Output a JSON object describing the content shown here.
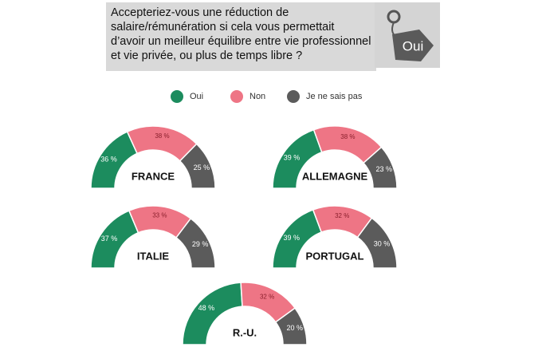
{
  "question": "Accepteriez-vous une réduction de salaire/rémunération si cela vous permettait d’avoir un meilleur équilibre entre vie professionnel et vie privée, ou plus de temps libre ?",
  "tag_label": "Oui",
  "chart_data": [
    {
      "type": "donut",
      "title": "FRANCE",
      "categories": [
        "Oui",
        "Non",
        "Je ne sais pas"
      ],
      "colors": [
        "#1c8c5e",
        "#ee7585",
        "#5b5b5b"
      ],
      "values": [
        36,
        38,
        25
      ],
      "value_labels": [
        "36 %",
        "38 %",
        "25 %"
      ]
    },
    {
      "type": "donut",
      "title": "ALLEMAGNE",
      "categories": [
        "Oui",
        "Non",
        "Je ne sais pas"
      ],
      "colors": [
        "#1c8c5e",
        "#ee7585",
        "#5b5b5b"
      ],
      "values": [
        39,
        38,
        23
      ],
      "value_labels": [
        "39 %",
        "38 %",
        "23 %"
      ]
    },
    {
      "type": "donut",
      "title": "ITALIE",
      "categories": [
        "Oui",
        "Non",
        "Je ne sais pas"
      ],
      "colors": [
        "#1c8c5e",
        "#ee7585",
        "#5b5b5b"
      ],
      "values": [
        37,
        33,
        29
      ],
      "value_labels": [
        "37 %",
        "33 %",
        "29 %"
      ]
    },
    {
      "type": "donut",
      "title": "PORTUGAL",
      "categories": [
        "Oui",
        "Non",
        "Je ne sais pas"
      ],
      "colors": [
        "#1c8c5e",
        "#ee7585",
        "#5b5b5b"
      ],
      "values": [
        39,
        32,
        30
      ],
      "value_labels": [
        "39 %",
        "32 %",
        "30 %"
      ]
    },
    {
      "type": "donut",
      "title": "R.-U.",
      "categories": [
        "Oui",
        "Non",
        "Je ne sais pas"
      ],
      "colors": [
        "#1c8c5e",
        "#ee7585",
        "#5b5b5b"
      ],
      "values": [
        48,
        32,
        20
      ],
      "value_labels": [
        "48 %",
        "32 %",
        "20 %"
      ]
    }
  ]
}
